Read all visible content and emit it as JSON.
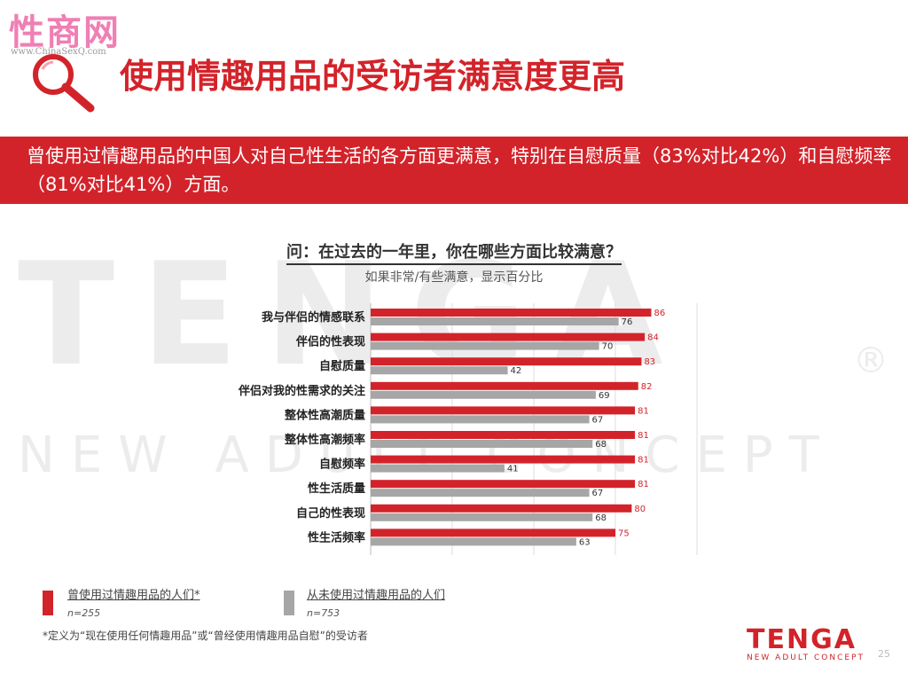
{
  "watermark": {
    "site_text": "性商网",
    "url_text": "www.ChinaSexQ.com"
  },
  "page_title": "使用情趣用品的受访者满意度更高",
  "banner_text": "曾使用过情趣用品的中国人对自己性生活的各方面更满意，特别在自慰质量（83%对比42%）和自慰频率（81%对比41%）方面。",
  "background_watermark": {
    "line1": "TENGA",
    "line2": "NEW ADULT CONCEPT",
    "registered_mark": "®"
  },
  "question": "问：在过去的一年里，你在哪些方面比较满意？",
  "subtitle": "如果非常/有些满意，显示百分比",
  "chart_data": {
    "type": "bar",
    "orientation": "horizontal",
    "categories": [
      "我与伴侣的情感联系",
      "伴侣的性表现",
      "自慰质量",
      "伴侣对我的性需求的关注",
      "整体性高潮质量",
      "整体性高潮频率",
      "自慰频率",
      "性生活质量",
      "自己的性表现",
      "性生活频率"
    ],
    "series": [
      {
        "name": "曾使用过情趣用品的人们*",
        "color": "#d3232a",
        "values": [
          86,
          84,
          83,
          82,
          81,
          81,
          81,
          81,
          80,
          75
        ]
      },
      {
        "name": "从未使用过情趣用品的人们",
        "color": "#a6a6a6",
        "values": [
          76,
          70,
          42,
          69,
          67,
          68,
          41,
          67,
          68,
          63
        ]
      }
    ],
    "xlim": [
      0,
      100
    ],
    "grid": true
  },
  "legend": [
    {
      "label": "曾使用过情趣用品的人们*",
      "n": "n=255",
      "color": "#d3232a"
    },
    {
      "label": "从未使用过情趣用品的人们",
      "n": "n=753",
      "color": "#a6a6a6"
    }
  ],
  "footnote": "*定义为“现在使用任何情趣用品”或“曾经使用情趣用品自慰”的受访者",
  "logo": {
    "word": "TENGA",
    "tagline": "NEW ADULT CONCEPT"
  },
  "page_number": "25"
}
